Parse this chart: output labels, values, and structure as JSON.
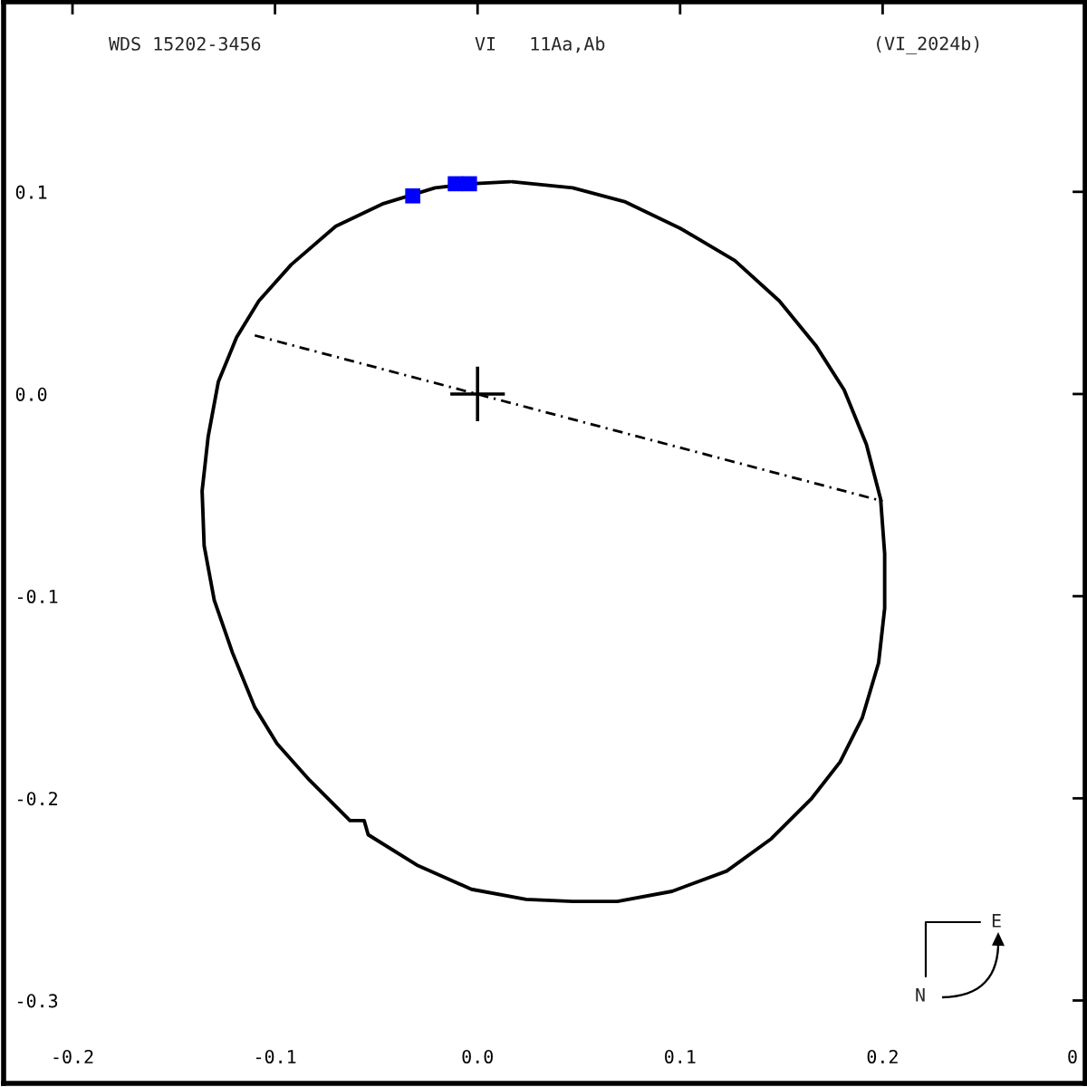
{
  "chart_data": {
    "type": "line",
    "title": "WDS 15202-3456",
    "subtitle": "VI   11Aa,Ab",
    "annotations": [
      "(VI_2024b)",
      "N",
      "E"
    ],
    "xlim": [
      -0.234,
      0.3
    ],
    "ylim": [
      -0.341,
      0.194
    ],
    "xticks": [
      -0.2,
      -0.1,
      {
        "value": 0.0,
        "label": "0.0"
      },
      0.1,
      0.2,
      {
        "value": 0.3,
        "label": "0"
      }
    ],
    "yticks": [
      0.1,
      {
        "value": 0.0,
        "label": "0.0"
      },
      -0.1,
      -0.2,
      -0.3
    ],
    "series": [
      {
        "color": "#000000",
        "line_style": "dashed",
        "x": [
          -0.11,
          0.2
        ],
        "values": [
          0.029,
          -0.053
        ]
      },
      {
        "color": "#000000",
        "line_style": "solid",
        "x": [
          0.017,
          0.047,
          0.073,
          0.1,
          0.127,
          0.149,
          0.167,
          0.181,
          0.192,
          0.199,
          0.201,
          0.201,
          0.198,
          0.19,
          0.179,
          0.165,
          0.145,
          0.123,
          0.096,
          0.069,
          0.047,
          0.024,
          -0.003,
          -0.03,
          -0.054,
          -0.056,
          -0.063,
          -0.083,
          -0.099,
          -0.11,
          -0.121,
          -0.13,
          -0.135,
          -0.136,
          -0.133,
          -0.128,
          -0.119,
          -0.108,
          -0.092,
          -0.07,
          -0.047,
          -0.021,
          -0.003,
          0.016
        ],
        "values": [
          0.105,
          0.102,
          0.095,
          0.082,
          0.066,
          0.046,
          0.024,
          0.002,
          -0.025,
          -0.052,
          -0.079,
          -0.106,
          -0.133,
          -0.16,
          -0.182,
          -0.2,
          -0.22,
          -0.236,
          -0.246,
          -0.251,
          -0.251,
          -0.25,
          -0.245,
          -0.233,
          -0.218,
          -0.211,
          -0.211,
          -0.191,
          -0.173,
          -0.155,
          -0.128,
          -0.102,
          -0.075,
          -0.048,
          -0.021,
          0.006,
          0.028,
          0.046,
          0.064,
          0.083,
          0.094,
          0.102,
          0.104,
          0.105
        ]
      },
      {
        "type": "scatter",
        "color": "#0000ff",
        "marker": "square",
        "x": [
          -0.032,
          -0.011,
          -0.004
        ],
        "values": [
          0.098,
          0.104,
          0.104
        ]
      },
      {
        "type": "scatter",
        "color": "#000000",
        "marker": "cross",
        "x": [
          0.0
        ],
        "values": [
          0.0
        ]
      }
    ]
  }
}
